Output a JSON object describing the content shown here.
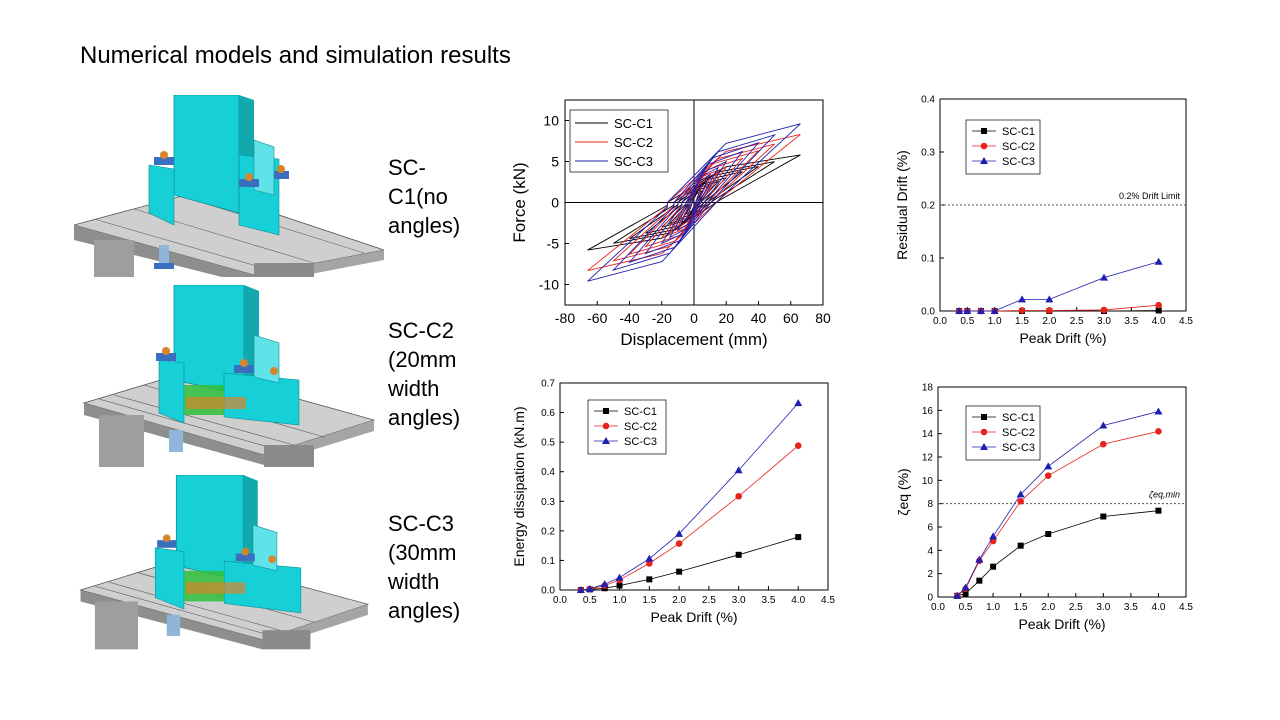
{
  "slide": {
    "title": "Numerical models and simulation results"
  },
  "models": [
    {
      "caption": "SC-\nC1(no\nangles)"
    },
    {
      "caption": "SC-C2\n(20mm\nwidth\nangles)"
    },
    {
      "caption": "SC-C3\n(30mm\nwidth\nangles)"
    }
  ],
  "colors": {
    "SC-C1": "#000000",
    "SC-C2": "#e8221c",
    "SC-C3": "#1f1fb0",
    "model_cyan": "#17cfd6",
    "slab_grey": "#9a9a9a",
    "plate_blue": "#3a6fc0",
    "angle_green": "#2fbf3a",
    "bolt_orange": "#d8842a"
  },
  "chart_data": [
    {
      "id": "hysteresis",
      "type": "line",
      "xlabel": "Displacement (mm)",
      "ylabel": "Force (kN)",
      "xlim": [
        -80,
        80
      ],
      "ylim": [
        -12.5,
        12.5
      ],
      "xticks": [
        -80,
        -60,
        -40,
        -20,
        0,
        20,
        40,
        60,
        80
      ],
      "yticks": [
        -10,
        -5,
        0,
        5,
        10
      ],
      "legend": "top-left",
      "series": [
        {
          "name": "SC-C1",
          "peak_force": 5.8,
          "min_force": -5.8
        },
        {
          "name": "SC-C2",
          "peak_force": 8.3,
          "min_force": -8.3
        },
        {
          "name": "SC-C3",
          "peak_force": 9.6,
          "min_force": -9.5
        }
      ],
      "amplitudes_mm": [
        5,
        10,
        15,
        20,
        30,
        40,
        50,
        66
      ]
    },
    {
      "id": "residual-drift",
      "type": "line",
      "xlabel": "Peak Drift (%)",
      "ylabel": "Residual Drift (%)",
      "xlim": [
        0.0,
        4.5
      ],
      "ylim": [
        0.0,
        0.4
      ],
      "xticks": [
        "0.0",
        "0.5",
        "1.0",
        "1.5",
        "2.0",
        "2.5",
        "3.0",
        "3.5",
        "4.0",
        "4.5"
      ],
      "yticks": [
        "0.0",
        "0.1",
        "0.2",
        "0.3",
        "0.4"
      ],
      "legend": "top-left",
      "reference_line": {
        "y": 0.2,
        "label": "0.2% Drift Limit"
      },
      "x": [
        0.35,
        0.5,
        0.75,
        1.0,
        1.5,
        2.0,
        3.0,
        4.0
      ],
      "series": [
        {
          "name": "SC-C1",
          "values": [
            0,
            0,
            0,
            0,
            0,
            0,
            0,
            0.001
          ]
        },
        {
          "name": "SC-C2",
          "values": [
            0,
            0,
            0,
            0,
            0.001,
            0.001,
            0.002,
            0.011
          ]
        },
        {
          "name": "SC-C3",
          "values": [
            0,
            0,
            0,
            0,
            0.022,
            0.022,
            0.063,
            0.093
          ]
        }
      ]
    },
    {
      "id": "energy-dissipation",
      "type": "line",
      "xlabel": "Peak Drift (%)",
      "ylabel": "Energy dissipation (kN.m)",
      "xlim": [
        0.0,
        4.5
      ],
      "ylim": [
        0.0,
        0.7
      ],
      "xticks": [
        "0.0",
        "0.5",
        "1.0",
        "1.5",
        "2.0",
        "2.5",
        "3.0",
        "3.5",
        "4.0",
        "4.5"
      ],
      "yticks": [
        "0.0",
        "0.1",
        "0.2",
        "0.3",
        "0.4",
        "0.5",
        "0.6",
        "0.7"
      ],
      "legend": "top-left",
      "x": [
        0.35,
        0.5,
        0.75,
        1.0,
        1.5,
        2.0,
        3.0,
        4.0
      ],
      "series": [
        {
          "name": "SC-C1",
          "values": [
            0.0,
            0.002,
            0.006,
            0.015,
            0.036,
            0.062,
            0.119,
            0.179
          ]
        },
        {
          "name": "SC-C2",
          "values": [
            0.0,
            0.003,
            0.015,
            0.034,
            0.09,
            0.157,
            0.317,
            0.488
          ]
        },
        {
          "name": "SC-C3",
          "values": [
            0.0,
            0.004,
            0.02,
            0.042,
            0.106,
            0.19,
            0.405,
            0.632
          ]
        }
      ]
    },
    {
      "id": "damping",
      "type": "line",
      "xlabel": "Peak Drift (%)",
      "ylabel": "ζeq (%)",
      "xlim": [
        0.0,
        4.5
      ],
      "ylim": [
        0,
        18
      ],
      "xticks": [
        "0.0",
        "0.5",
        "1.0",
        "1.5",
        "2.0",
        "2.5",
        "3.0",
        "3.5",
        "4.0",
        "4.5"
      ],
      "yticks": [
        "0",
        "2",
        "4",
        "6",
        "8",
        "10",
        "12",
        "14",
        "16",
        "18"
      ],
      "legend": "top-left",
      "reference_line": {
        "y": 8,
        "label": "ζeq,min"
      },
      "x": [
        0.35,
        0.5,
        0.75,
        1.0,
        1.5,
        2.0,
        3.0,
        4.0
      ],
      "series": [
        {
          "name": "SC-C1",
          "values": [
            0.1,
            0.3,
            1.4,
            2.6,
            4.4,
            5.4,
            6.9,
            7.4
          ]
        },
        {
          "name": "SC-C2",
          "values": [
            0.1,
            0.7,
            3.1,
            4.8,
            8.2,
            10.4,
            13.1,
            14.2
          ]
        },
        {
          "name": "SC-C3",
          "values": [
            0.1,
            0.8,
            3.2,
            5.2,
            8.8,
            11.2,
            14.7,
            15.9
          ]
        }
      ]
    }
  ]
}
